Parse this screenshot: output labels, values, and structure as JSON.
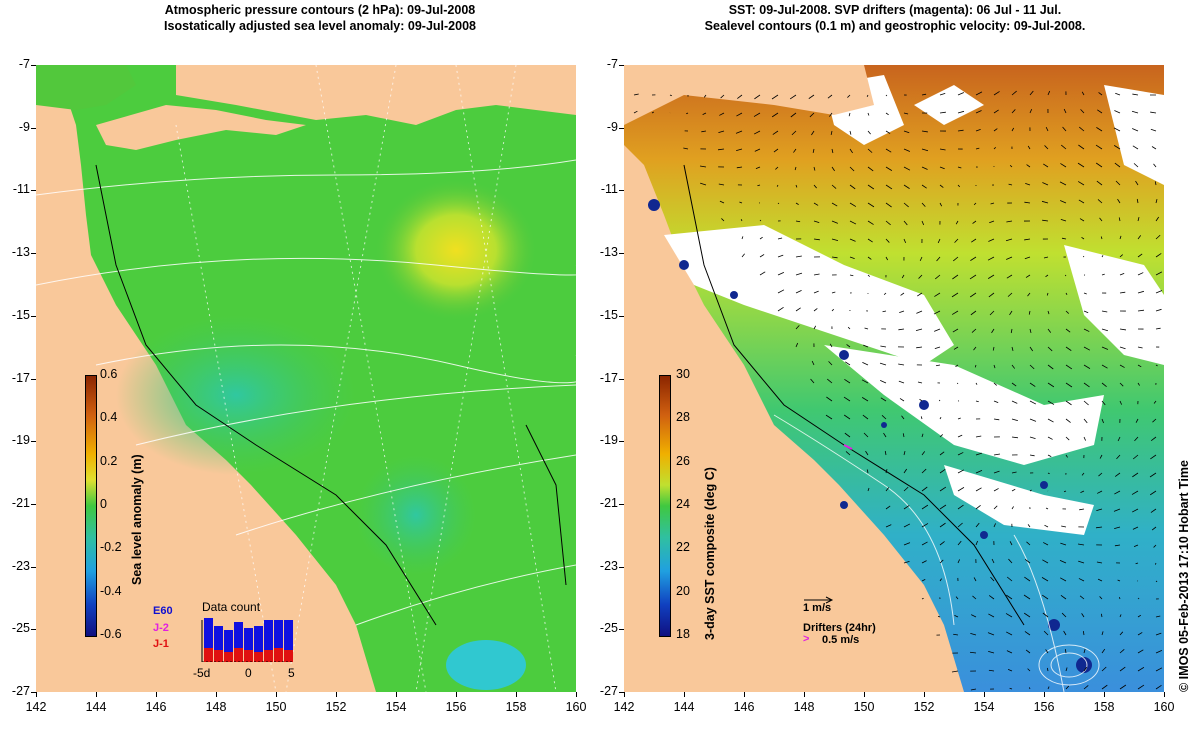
{
  "left_panel": {
    "title_line1": "Atmospheric pressure contours (2 hPa): 09-Jul-2008",
    "title_line2": "Isostatically adjusted sea level anomaly: 09-Jul-2008",
    "colorbar": {
      "label": "Sea level anomaly (m)",
      "ticks": [
        "0.6",
        "0.4",
        "0.2",
        "0",
        "-0.2",
        "-0.4",
        "-0.6"
      ]
    },
    "data_count": {
      "title": "Data count",
      "legend": [
        "J-2",
        "J-1"
      ],
      "obscured_label": "E60",
      "xticks": [
        "-5d",
        "0",
        "5"
      ]
    }
  },
  "right_panel": {
    "title_line1": "SST: 09-Jul-2008. SVP drifters (magenta): 06 Jul - 11 Jul.",
    "title_line2": "Sealevel contours (0.1 m) and geostrophic velocity: 09-Jul-2008.",
    "colorbar": {
      "label": "3-day SST composite (deg C)",
      "ticks": [
        "30",
        "28",
        "26",
        "24",
        "22",
        "20",
        "18"
      ]
    },
    "velocity_scale": "1 m/s",
    "drifters_label": "Drifters (24hr)",
    "drifters_scale": "0.5 m/s"
  },
  "axes": {
    "yticks": [
      "-7",
      "-9",
      "-11",
      "-13",
      "-15",
      "-17",
      "-19",
      "-21",
      "-23",
      "-25",
      "-27"
    ],
    "xticks": [
      "142",
      "144",
      "146",
      "148",
      "150",
      "152",
      "154",
      "156",
      "158",
      "160"
    ]
  },
  "credit": "© IMOS 05-Feb-2013 17:10 Hobart Time",
  "colors": {
    "land": "#f9c89a",
    "sla_green": "#3cc83c",
    "sst_blue": "#3a8fdc",
    "sst_orange": "#c8641e"
  }
}
